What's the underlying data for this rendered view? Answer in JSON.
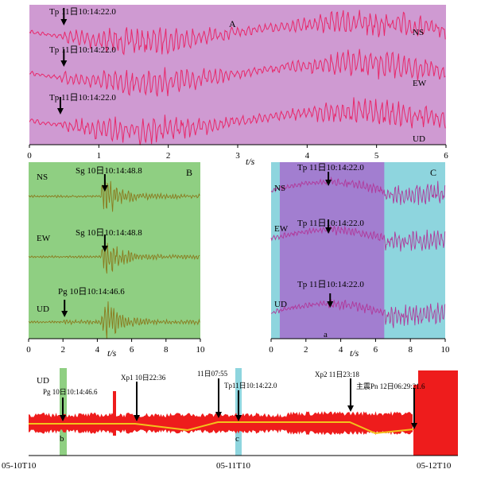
{
  "chart_data": [
    {
      "type": "line",
      "panel_label": "A",
      "xlabel": "t/s",
      "xlim": [
        0,
        6
      ],
      "x_ticks": [
        "0",
        "1",
        "2",
        "3",
        "4",
        "5",
        "6"
      ],
      "background": "#cf9ad2",
      "trace_color": "#e8286a",
      "series": [
        {
          "name": "NS",
          "pick_text": "Tp 11日10:14:22.0",
          "pick_time": 0.45
        },
        {
          "name": "EW",
          "pick_text": "Tp 11日10:14:22.0",
          "pick_time": 0.45
        },
        {
          "name": "UD",
          "pick_text": "Tp 11日10:14:22.0",
          "pick_time": 0.4
        }
      ]
    },
    {
      "type": "line",
      "panel_label": "B",
      "xlabel": "t/s",
      "xlim": [
        0,
        10
      ],
      "x_ticks": [
        "0",
        "2",
        "4",
        "6",
        "8",
        "10"
      ],
      "background": "#8fcf82",
      "trace_color": "#8a7a1e",
      "series": [
        {
          "name": "NS",
          "pick_text": "Sg 10日10:14:48.8",
          "pick_time": 4.3
        },
        {
          "name": "EW",
          "pick_text": "Sg 10日10:14:48.8",
          "pick_time": 4.3
        },
        {
          "name": "UD",
          "pick_text": "Pg 10日10:14:46.6",
          "pick_time": 2.0
        }
      ]
    },
    {
      "type": "line",
      "panel_label": "C",
      "sub_label": "a",
      "xlabel": "t/s",
      "xlim": [
        0,
        10
      ],
      "x_ticks": [
        "0",
        "2",
        "4",
        "6",
        "8",
        "10"
      ],
      "background": "#8ed5de",
      "highlight_color": "#a27ed0",
      "highlight_range": [
        0.5,
        6.5
      ],
      "trace_color": "#b0389a",
      "series": [
        {
          "name": "NS",
          "pick_text": "Tp 11日10:14:22.0",
          "pick_time": 3.2
        },
        {
          "name": "EW",
          "pick_text": "Tp 11日10:14:22.0",
          "pick_time": 3.2
        },
        {
          "name": "UD",
          "pick_text": "Tp 11日10:14:22.0",
          "pick_time": 3.3
        }
      ]
    },
    {
      "type": "line",
      "series_name": "UD",
      "trace_color": "#ee1c1c",
      "envelope_color": "#f2c21c",
      "x_start_label": "05-10T10",
      "x_mid_label": "05-11T10",
      "x_end_label": "05-12T10",
      "markers": [
        {
          "label": "Pg 10日10:14:46.6",
          "band_label": "b",
          "band_color": "#8fcf82"
        },
        {
          "label": "Xp1 10日22:36"
        },
        {
          "label": "11日07:55"
        },
        {
          "label": "Tp11日10:14:22.0",
          "band_label": "c",
          "band_color": "#8ed5de"
        },
        {
          "label": "Xp2 11日23:18"
        },
        {
          "label": "主震Pn 12日06:29:21.6"
        }
      ]
    }
  ]
}
